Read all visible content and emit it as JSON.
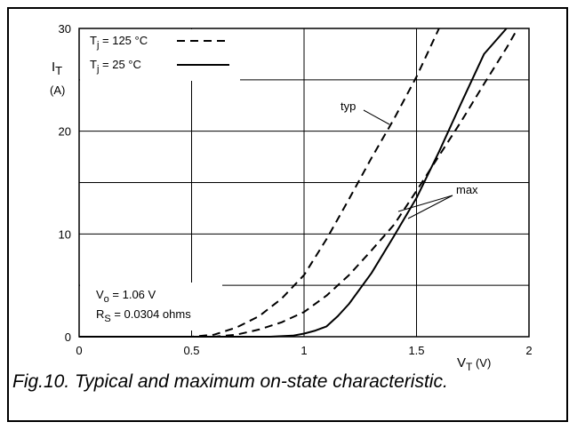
{
  "figure": {
    "caption": "Fig.10.  Typical and maximum on-state characteristic."
  },
  "chart_data": {
    "type": "line",
    "xlim": [
      0,
      2
    ],
    "ylim": [
      0,
      30
    ],
    "x_ticks": [
      "0",
      "0.5",
      "1",
      "1.5",
      "2"
    ],
    "y_ticks": [
      "0",
      "10",
      "20",
      "30"
    ],
    "xlabel": {
      "main": "V",
      "sub": "T",
      "unit": " (V)"
    },
    "ylabel": {
      "main": "I",
      "sub": "T",
      "unit": "(A)"
    },
    "grid": true,
    "legend": [
      {
        "main": "T",
        "sub": "j",
        "text": " = 125 °C",
        "style": "dashed"
      },
      {
        "main": "T",
        "sub": "j",
        "text": " = 25 °C",
        "style": "solid"
      }
    ],
    "annotations": [
      {
        "text": "typ",
        "points_to": "Tj = 125 °C typ"
      },
      {
        "text": "max",
        "points_to": [
          "Tj = 125 °C max",
          "Tj = 25 °C max"
        ]
      }
    ],
    "parameters": {
      "line1": {
        "main": "V",
        "sub": "o",
        "text": " = 1.06 V"
      },
      "line2": {
        "main": "R",
        "sub": "S",
        "text": " = 0.0304 ohms"
      }
    },
    "series": [
      {
        "name": "Tj = 125 °C typ",
        "style": "dashed",
        "x": [
          0,
          0.5,
          0.6,
          0.7,
          0.8,
          0.9,
          1.0,
          1.1,
          1.2,
          1.3,
          1.4,
          1.5,
          1.6
        ],
        "y": [
          0,
          0,
          0.2,
          0.9,
          2.0,
          3.7,
          6.0,
          9.5,
          13.4,
          17.4,
          21.2,
          25.3,
          30
        ]
      },
      {
        "name": "Tj = 125 °C max",
        "style": "dashed",
        "x": [
          0,
          0.6,
          0.7,
          0.8,
          0.9,
          1.0,
          1.1,
          1.2,
          1.3,
          1.4,
          1.5,
          1.6,
          1.7,
          1.8,
          1.9,
          1.95
        ],
        "y": [
          0,
          0,
          0.2,
          0.7,
          1.4,
          2.4,
          4.0,
          6.0,
          8.4,
          10.9,
          14.2,
          17.6,
          21.0,
          24.6,
          28.1,
          30
        ]
      },
      {
        "name": "Tj = 25 °C max",
        "style": "solid",
        "x": [
          0,
          0.85,
          0.95,
          1.0,
          1.05,
          1.1,
          1.15,
          1.2,
          1.3,
          1.4,
          1.5,
          1.6,
          1.7,
          1.8,
          1.9
        ],
        "y": [
          0,
          0,
          0.1,
          0.3,
          0.6,
          1.0,
          2.0,
          3.2,
          6.2,
          9.8,
          13.5,
          18.0,
          22.8,
          27.5,
          30
        ]
      }
    ]
  }
}
